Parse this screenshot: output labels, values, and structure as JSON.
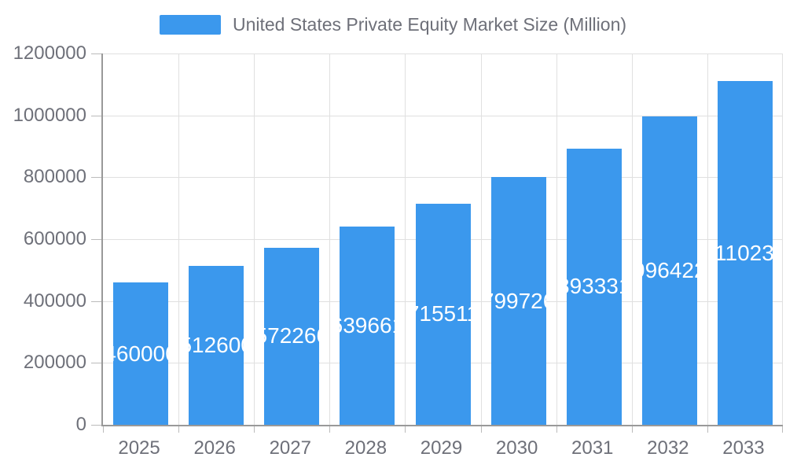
{
  "legend": {
    "label": "United States Private Equity Market Size (Million)"
  },
  "chart_data": {
    "type": "bar",
    "title": "United States Private Equity Market Size (Million)",
    "series_name": "United States Private Equity Market Size (Million)",
    "categories": [
      "2025",
      "2026",
      "2027",
      "2028",
      "2029",
      "2030",
      "2031",
      "2032",
      "2033"
    ],
    "values": [
      460000,
      512600,
      572266,
      639661,
      715511,
      799726,
      893331,
      996422,
      1110234
    ],
    "xlabel": "",
    "ylabel": "",
    "ylim": [
      0,
      1200000
    ],
    "yticks": [
      0,
      200000,
      400000,
      600000,
      800000,
      1000000,
      1200000
    ],
    "grid": true,
    "legend_position": "top",
    "bar_color": "#3B98ED",
    "bar_label_color": "#ffffff",
    "axis_text_color": "#6E7079",
    "grid_color": "#E0E0E0",
    "axis_line_color": "#999999",
    "tick_color": "#BBBBBB"
  }
}
